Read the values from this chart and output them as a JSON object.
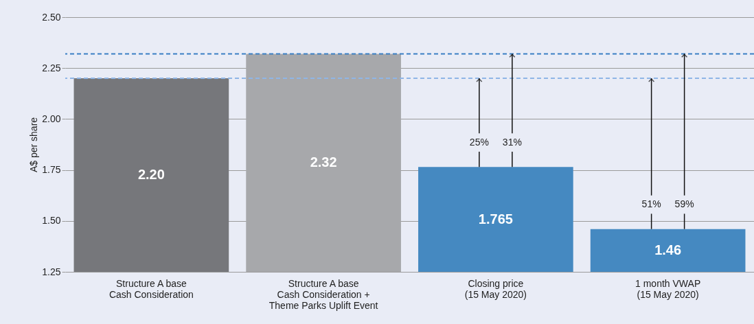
{
  "chart_data": {
    "type": "bar",
    "ylabel": "A$ per share",
    "categories": [
      "Structure A base\nCash Consideration",
      "Structure A base\nCash Consideration +\nTheme Parks Uplift Event",
      "Closing price\n(15 May 2020)",
      "1 month VWAP\n(15 May 2020)"
    ],
    "values": [
      2.2,
      2.32,
      1.765,
      1.46
    ],
    "colors": [
      "#76777b",
      "#a7a8ab",
      "#4589c1",
      "#4589c1"
    ],
    "value_labels": [
      "2.20",
      "2.32",
      "1.765",
      "1.46"
    ],
    "ylim": [
      1.25,
      2.5
    ],
    "yticks": [
      {
        "value": 1.25,
        "label": "1.25"
      },
      {
        "value": 1.5,
        "label": "1.50"
      },
      {
        "value": 1.75,
        "label": "1.75"
      },
      {
        "value": 2.0,
        "label": "2.00"
      },
      {
        "value": 2.25,
        "label": "2.25"
      },
      {
        "value": 2.5,
        "label": "2.50"
      }
    ],
    "grid": "y",
    "ref_lines": [
      {
        "axis": "y",
        "value": 2.2,
        "color": "#8fb5e6",
        "line_style": "dashed"
      },
      {
        "axis": "y",
        "value": 2.32,
        "color": "#3b7fc4",
        "line_style": "dashed"
      }
    ],
    "annotations": [
      {
        "text": "25%",
        "y": 2.2
      },
      {
        "text": "31%",
        "y": 2.32
      },
      {
        "text": "51%",
        "y": 2.2
      },
      {
        "text": "59%",
        "y": 2.32
      }
    ]
  }
}
